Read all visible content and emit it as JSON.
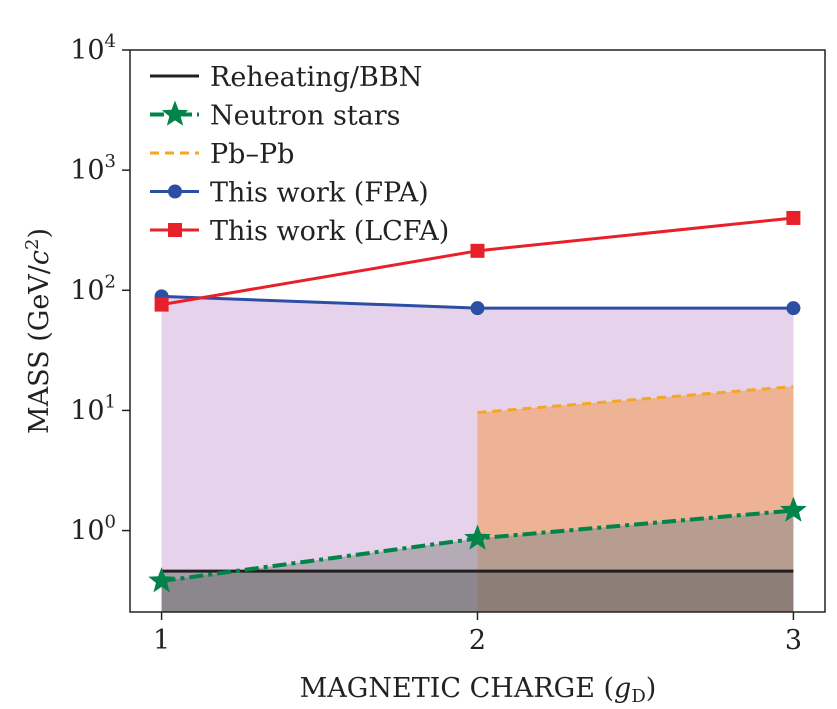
{
  "chart_data": {
    "type": "line",
    "title": "",
    "xlabel": {
      "main": "MAGNETIC CHARGE (",
      "var": "g",
      "sub": "D",
      "end": ")"
    },
    "ylabel": {
      "main": "MASS (GeV/",
      "var": "c",
      "sup": "2",
      "end": ")"
    },
    "xlim": [
      0.9,
      3.1
    ],
    "ylim": [
      0.21,
      10000
    ],
    "yscale": "log",
    "x_ticks": [
      {
        "value": 1,
        "label": "1"
      },
      {
        "value": 2,
        "label": "2"
      },
      {
        "value": 3,
        "label": "3"
      }
    ],
    "y_ticks": [
      {
        "value": 1,
        "base": "10",
        "exp": "0"
      },
      {
        "value": 10,
        "base": "10",
        "exp": "1"
      },
      {
        "value": 100,
        "base": "10",
        "exp": "2"
      },
      {
        "value": 1000,
        "base": "10",
        "exp": "3"
      },
      {
        "value": 10000,
        "base": "10",
        "exp": "4"
      }
    ],
    "legend_position": "top-left",
    "series": [
      {
        "name": "Reheating/BBN",
        "color": "#231f20",
        "dash": "solid",
        "marker": "none",
        "x": [
          1,
          3
        ],
        "y": [
          0.46,
          0.46
        ],
        "fill": "#5a5a5a"
      },
      {
        "name": "Neutron stars",
        "color": "#00844a",
        "dash": "dashdot",
        "marker": "star",
        "x": [
          1,
          2,
          3
        ],
        "y": [
          0.38,
          0.86,
          1.47
        ],
        "fill": "#8a8a8a"
      },
      {
        "name": "Pb–Pb",
        "color": "#f5a623",
        "dash": "dashed",
        "marker": "none",
        "x": [
          2,
          3
        ],
        "y": [
          9.6,
          15.8
        ],
        "fill": "#f0a878"
      },
      {
        "name": "This work (FPA)",
        "color": "#2d4fa3",
        "dash": "solid",
        "marker": "circle",
        "x": [
          1,
          2,
          3
        ],
        "y": [
          89,
          71,
          71
        ],
        "fill": "#e6d2ea"
      },
      {
        "name": "This work (LCFA)",
        "color": "#e8202a",
        "dash": "solid",
        "marker": "square",
        "x": [
          1,
          2,
          3
        ],
        "y": [
          76,
          213,
          400
        ],
        "fill": null
      }
    ]
  }
}
